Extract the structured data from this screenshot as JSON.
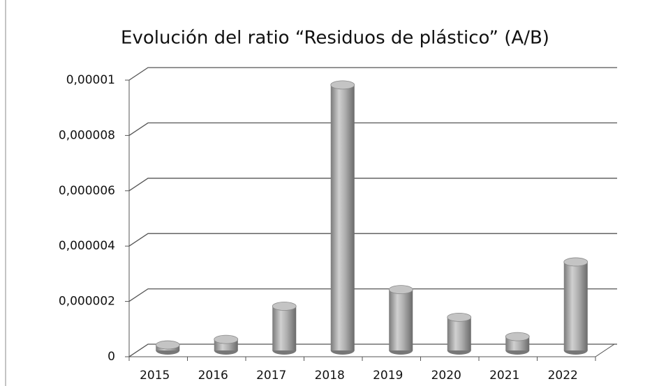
{
  "chart_data": {
    "type": "bar",
    "title": "Evolución del ratio “Residuos de plástico” (A/B)",
    "categories": [
      "2015",
      "2016",
      "2017",
      "2018",
      "2019",
      "2020",
      "2021",
      "2022"
    ],
    "values": [
      2e-07,
      4e-07,
      1.6e-06,
      9.6e-06,
      2.2e-06,
      1.2e-06,
      5e-07,
      3.2e-06
    ],
    "color": "#a6a6a6",
    "ylim": [
      0,
      1e-05
    ],
    "yticks": [
      0,
      {
        "value": 2e-06,
        "label": "0,000002"
      },
      {
        "value": 4e-06,
        "label": "0,000004"
      },
      {
        "value": 6e-06,
        "label": "0,000006"
      },
      {
        "value": 8e-06,
        "label": "0,000008"
      },
      {
        "value": 1e-05,
        "label": "0,00001"
      }
    ],
    "grid": true
  }
}
